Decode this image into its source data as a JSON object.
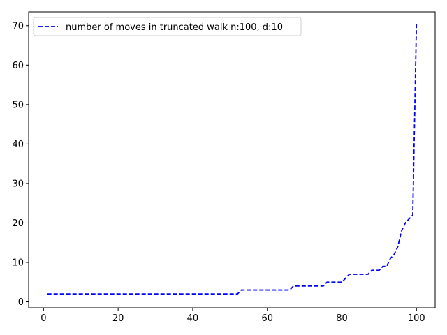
{
  "chart_data": {
    "type": "line",
    "title": "",
    "xlabel": "",
    "ylabel": "",
    "xlim": [
      -4.0,
      105.0
    ],
    "ylim": [
      -1.5,
      73.5
    ],
    "xticks": [
      0,
      20,
      40,
      60,
      80,
      100
    ],
    "yticks": [
      0,
      10,
      20,
      30,
      40,
      50,
      60,
      70
    ],
    "grid": false,
    "legend": {
      "location": "upper left"
    },
    "series": [
      {
        "name": "number of moves in truncated walk n:100, d:10",
        "color": "#0000ff",
        "linestyle": "dashed",
        "x": [
          1,
          2,
          3,
          4,
          5,
          6,
          7,
          8,
          9,
          10,
          11,
          12,
          13,
          14,
          15,
          16,
          17,
          18,
          19,
          20,
          21,
          22,
          23,
          24,
          25,
          26,
          27,
          28,
          29,
          30,
          31,
          32,
          33,
          34,
          35,
          36,
          37,
          38,
          39,
          40,
          41,
          42,
          43,
          44,
          45,
          46,
          47,
          48,
          49,
          50,
          51,
          52,
          53,
          54,
          55,
          56,
          57,
          58,
          59,
          60,
          61,
          62,
          63,
          64,
          65,
          66,
          67,
          68,
          69,
          70,
          71,
          72,
          73,
          74,
          75,
          76,
          77,
          78,
          79,
          80,
          81,
          82,
          83,
          84,
          85,
          86,
          87,
          88,
          89,
          90,
          91,
          92,
          93,
          94,
          95,
          96,
          97,
          98,
          99,
          100
        ],
        "y": [
          2,
          2,
          2,
          2,
          2,
          2,
          2,
          2,
          2,
          2,
          2,
          2,
          2,
          2,
          2,
          2,
          2,
          2,
          2,
          2,
          2,
          2,
          2,
          2,
          2,
          2,
          2,
          2,
          2,
          2,
          2,
          2,
          2,
          2,
          2,
          2,
          2,
          2,
          2,
          2,
          2,
          2,
          2,
          2,
          2,
          2,
          2,
          2,
          2,
          2,
          2,
          2,
          3,
          3,
          3,
          3,
          3,
          3,
          3,
          3,
          3,
          3,
          3,
          3,
          3,
          3,
          4,
          4,
          4,
          4,
          4,
          4,
          4,
          4,
          4,
          5,
          5,
          5,
          5,
          5,
          6,
          7,
          7,
          7,
          7,
          7,
          7,
          8,
          8,
          8,
          9,
          9,
          11,
          12,
          14,
          18,
          20,
          21,
          22,
          71
        ]
      }
    ]
  }
}
